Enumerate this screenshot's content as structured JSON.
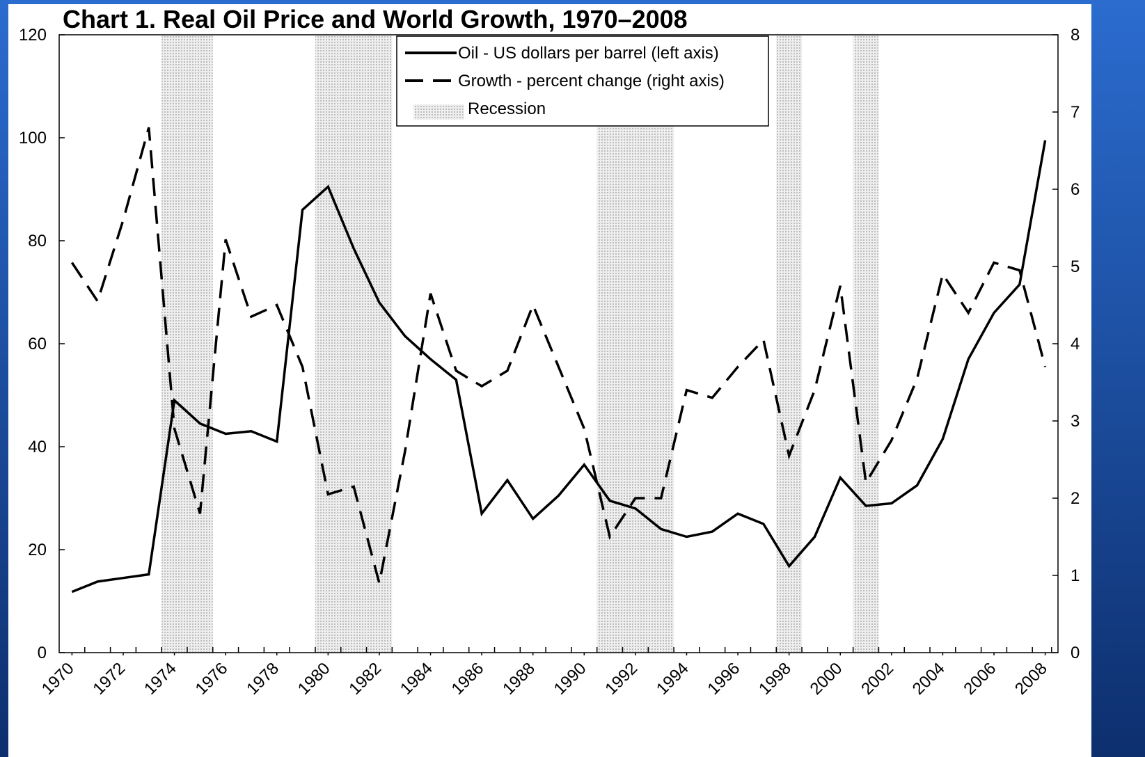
{
  "chart_data": {
    "type": "line",
    "title": "Chart 1. Real Oil Price and World Growth, 1970–2008",
    "x": [
      1970,
      1971,
      1972,
      1973,
      1974,
      1975,
      1976,
      1977,
      1978,
      1979,
      1980,
      1981,
      1982,
      1983,
      1984,
      1985,
      1986,
      1987,
      1988,
      1989,
      1990,
      1991,
      1992,
      1993,
      1994,
      1995,
      1996,
      1997,
      1998,
      1999,
      2000,
      2001,
      2002,
      2003,
      2004,
      2005,
      2006,
      2007,
      2008
    ],
    "xlim": [
      1969.5,
      2008.5
    ],
    "xticks": [
      1970,
      1972,
      1974,
      1976,
      1978,
      1980,
      1982,
      1984,
      1986,
      1988,
      1990,
      1992,
      1994,
      1996,
      1998,
      2000,
      2002,
      2004,
      2006,
      2008
    ],
    "ylim": [
      0,
      120
    ],
    "yticks": [
      0,
      20,
      40,
      60,
      80,
      100,
      120
    ],
    "y2lim": [
      0,
      8
    ],
    "y2ticks": [
      0,
      1,
      2,
      3,
      4,
      5,
      6,
      7,
      8
    ],
    "series": [
      {
        "name": "Oil - US dollars per barrel (left axis)",
        "color": "#000000",
        "dash": "solid",
        "values": [
          11.8,
          13.8,
          14.5,
          15.2,
          49,
          44.5,
          42.5,
          43,
          41,
          86,
          90.5,
          78.5,
          68,
          61.5,
          57,
          53,
          27,
          33.5,
          26,
          30.5,
          36.5,
          29.5,
          28,
          24,
          22.5,
          23.5,
          27,
          25,
          16.8,
          22.5,
          34,
          28.5,
          29,
          32.5,
          41.5,
          57,
          66,
          71.5,
          99.5
        ]
      },
      {
        "name": "Growth - percent change (right axis)",
        "color": "#000000",
        "dash": "dashed",
        "axis": "y2",
        "values": [
          5.05,
          4.55,
          5.6,
          6.8,
          2.9,
          1.8,
          5.35,
          4.35,
          4.5,
          3.7,
          2.05,
          2.15,
          0.9,
          2.6,
          4.65,
          3.65,
          3.45,
          3.65,
          4.5,
          3.7,
          2.9,
          1.5,
          2.0,
          2.0,
          3.4,
          3.3,
          3.7,
          4.05,
          2.55,
          3.4,
          4.75,
          2.2,
          2.75,
          3.55,
          4.9,
          4.4,
          5.05,
          4.95,
          3.7
        ]
      }
    ],
    "recession_label": "Recession",
    "recessions": [
      [
        1973.5,
        1975.5
      ],
      [
        1979.5,
        1982.5
      ],
      [
        1990.5,
        1993.5
      ],
      [
        1997.5,
        1998.5
      ],
      [
        2000.5,
        2001.5
      ]
    ],
    "legend": "top-center"
  }
}
